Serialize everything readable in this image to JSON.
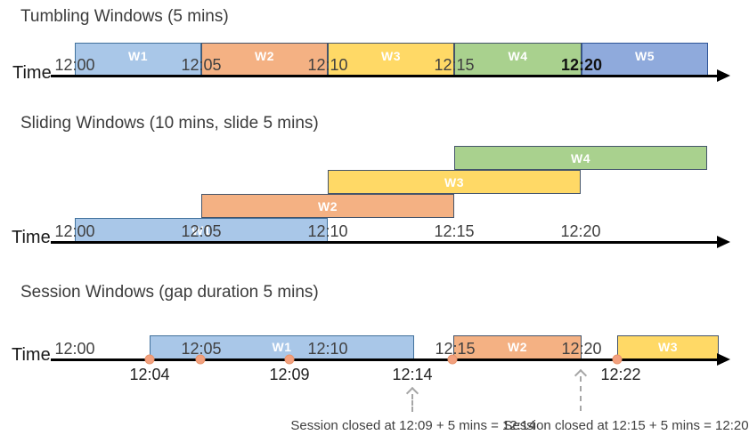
{
  "colors": {
    "light_blue": "#A9C7E8",
    "light_blue_border": "#41719C",
    "orange": "#F4B183",
    "orange_border": "#44546A",
    "yellow": "#FFD966",
    "yellow_border": "#44546A",
    "green": "#A9D18E",
    "green_border": "#44546A",
    "medium_blue": "#8FAADC",
    "medium_blue_border": "#2F5597",
    "axis": "#000000",
    "tick_text": "#404040",
    "window_label_text": "#FFFFFF",
    "event_dot": "#F2A07E",
    "event_dot_border": "#E8946C",
    "annotation_arrow": "#A6A6A6",
    "annotation_text": "#404040"
  },
  "sections": [
    {
      "title": "Tumbling Windows (5 mins)",
      "axis_label": "Time",
      "ticks": [
        {
          "label": "12:00"
        },
        {
          "label": "12:05"
        },
        {
          "label": "12:10"
        },
        {
          "label": "12:15"
        },
        {
          "label": "12:20",
          "emphasis": true
        }
      ],
      "windows": [
        {
          "name": "W1",
          "start": "12:00",
          "end": "12:05",
          "color": "light_blue"
        },
        {
          "name": "W2",
          "start": "12:05",
          "end": "12:10",
          "color": "orange"
        },
        {
          "name": "W3",
          "start": "12:10",
          "end": "12:15",
          "color": "yellow"
        },
        {
          "name": "W4",
          "start": "12:15",
          "end": "12:20",
          "color": "green"
        },
        {
          "name": "W5",
          "start": "12:20",
          "end": "12:25",
          "color": "medium_blue"
        }
      ]
    },
    {
      "title": "Sliding Windows (10 mins, slide 5 mins)",
      "axis_label": "Time",
      "ticks": [
        {
          "label": "12:00"
        },
        {
          "label": "12:05"
        },
        {
          "label": "12:10"
        },
        {
          "label": "12:15"
        },
        {
          "label": "12:20"
        }
      ],
      "windows": [
        {
          "name": "W1",
          "start": "12:00",
          "end": "12:10",
          "color": "light_blue"
        },
        {
          "name": "W2",
          "start": "12:05",
          "end": "12:15",
          "color": "orange"
        },
        {
          "name": "W3",
          "start": "12:10",
          "end": "12:20",
          "color": "yellow"
        },
        {
          "name": "W4",
          "start": "12:15",
          "end": "12:25",
          "color": "green"
        }
      ]
    },
    {
      "title": "Session Windows (gap duration 5 mins)",
      "axis_label": "Time",
      "ticks": [
        {
          "label": "12:00"
        },
        {
          "label": "12:05"
        },
        {
          "label": "12:10"
        },
        {
          "label": "12:15"
        },
        {
          "label": "12:20"
        }
      ],
      "windows": [
        {
          "name": "W1",
          "start": "12:04",
          "end": "12:14",
          "color": "light_blue"
        },
        {
          "name": "W2",
          "start": "12:15",
          "end": "12:20",
          "color": "orange"
        },
        {
          "name": "W3",
          "start": "12:22",
          "color": "yellow"
        }
      ],
      "events": [
        {
          "time": "12:04"
        },
        {
          "time": "12:05"
        },
        {
          "time": "12:09"
        },
        {
          "time": "12:15"
        },
        {
          "time": "12:22"
        }
      ],
      "below_axis_labels": [
        {
          "label": "12:04"
        },
        {
          "label": "12:09"
        },
        {
          "label": "12:14"
        },
        {
          "label": "12:22"
        }
      ],
      "annotations": [
        {
          "text": "Session closed at 12:09 + 5 mins = 12:14"
        },
        {
          "text": "Session closed at 12:15 + 5 mins = 12:20"
        }
      ]
    }
  ]
}
